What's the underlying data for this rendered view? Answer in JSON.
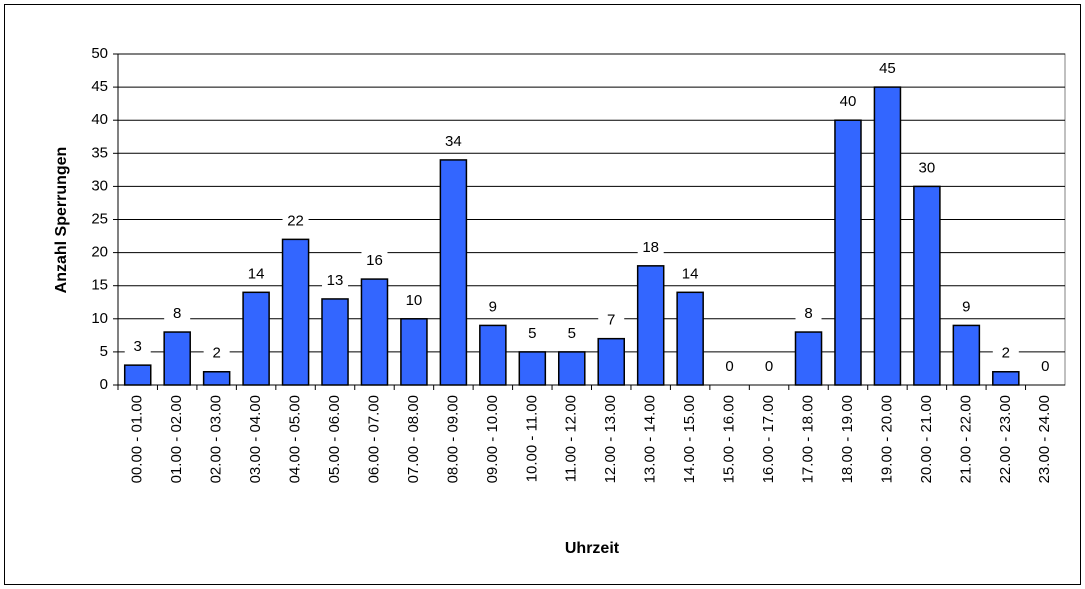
{
  "chart_data": {
    "type": "bar",
    "categories": [
      "00.00 - 01.00",
      "01.00 - 02.00",
      "02.00 - 03.00",
      "03.00 - 04.00",
      "04.00 - 05.00",
      "05.00 - 06.00",
      "06.00 - 07.00",
      "07.00 - 08.00",
      "08.00 - 09.00",
      "09.00 - 10.00",
      "10.00 - 11.00",
      "11.00 - 12.00",
      "12.00 - 13.00",
      "13.00 - 14.00",
      "14.00 - 15.00",
      "15.00 - 16.00",
      "16.00 - 17.00",
      "17.00 - 18.00",
      "18.00 - 19.00",
      "19.00 - 20.00",
      "20.00 - 21.00",
      "21.00 - 22.00",
      "22.00 - 23.00",
      "23.00 - 24.00"
    ],
    "values": [
      3,
      8,
      2,
      14,
      22,
      13,
      16,
      10,
      34,
      9,
      5,
      5,
      7,
      18,
      14,
      0,
      0,
      8,
      40,
      45,
      30,
      9,
      2,
      0
    ],
    "color": "#3366ff",
    "x_label": "Uhrzeit",
    "y_label": "Anzahl Sperrungen",
    "ylim": [
      0,
      50
    ],
    "yticks": [
      0,
      5,
      10,
      15,
      20,
      25,
      30,
      35,
      40,
      45,
      50
    ],
    "grid": true
  }
}
